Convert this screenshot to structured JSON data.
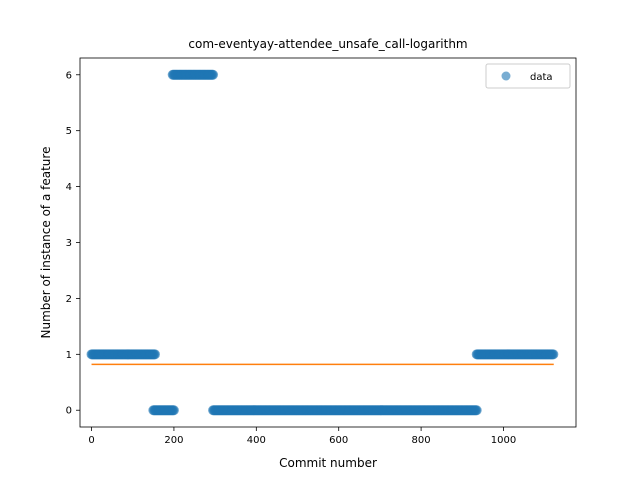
{
  "chart_data": {
    "type": "scatter",
    "title": "com-eventyay-attendee_unsafe_call-logarithm",
    "xlabel": "Commit number",
    "ylabel": "Number of instance of a feature",
    "xlim": [
      -28,
      1176
    ],
    "ylim": [
      -0.3,
      6.3
    ],
    "xticks": [
      0,
      200,
      400,
      600,
      800,
      1000
    ],
    "yticks": [
      0,
      1,
      2,
      3,
      4,
      5,
      6
    ],
    "grid": false,
    "legend": {
      "position": "top-right",
      "entries": [
        "data"
      ]
    },
    "colors": {
      "data": "#1f77b4",
      "fit": "#ff7f0e"
    },
    "series": [
      {
        "name": "data",
        "kind": "scatter",
        "segments": [
          {
            "x_start": 0,
            "x_end": 155,
            "y": 1
          },
          {
            "x_start": 150,
            "x_end": 200,
            "y": 0
          },
          {
            "x_start": 197,
            "x_end": 295,
            "y": 6
          },
          {
            "x_start": 295,
            "x_end": 935,
            "y": 0
          },
          {
            "x_start": 935,
            "x_end": 1122,
            "y": 1
          }
        ]
      },
      {
        "kind": "line",
        "x": [
          0,
          1122
        ],
        "y": [
          0.82,
          0.82
        ]
      }
    ]
  }
}
